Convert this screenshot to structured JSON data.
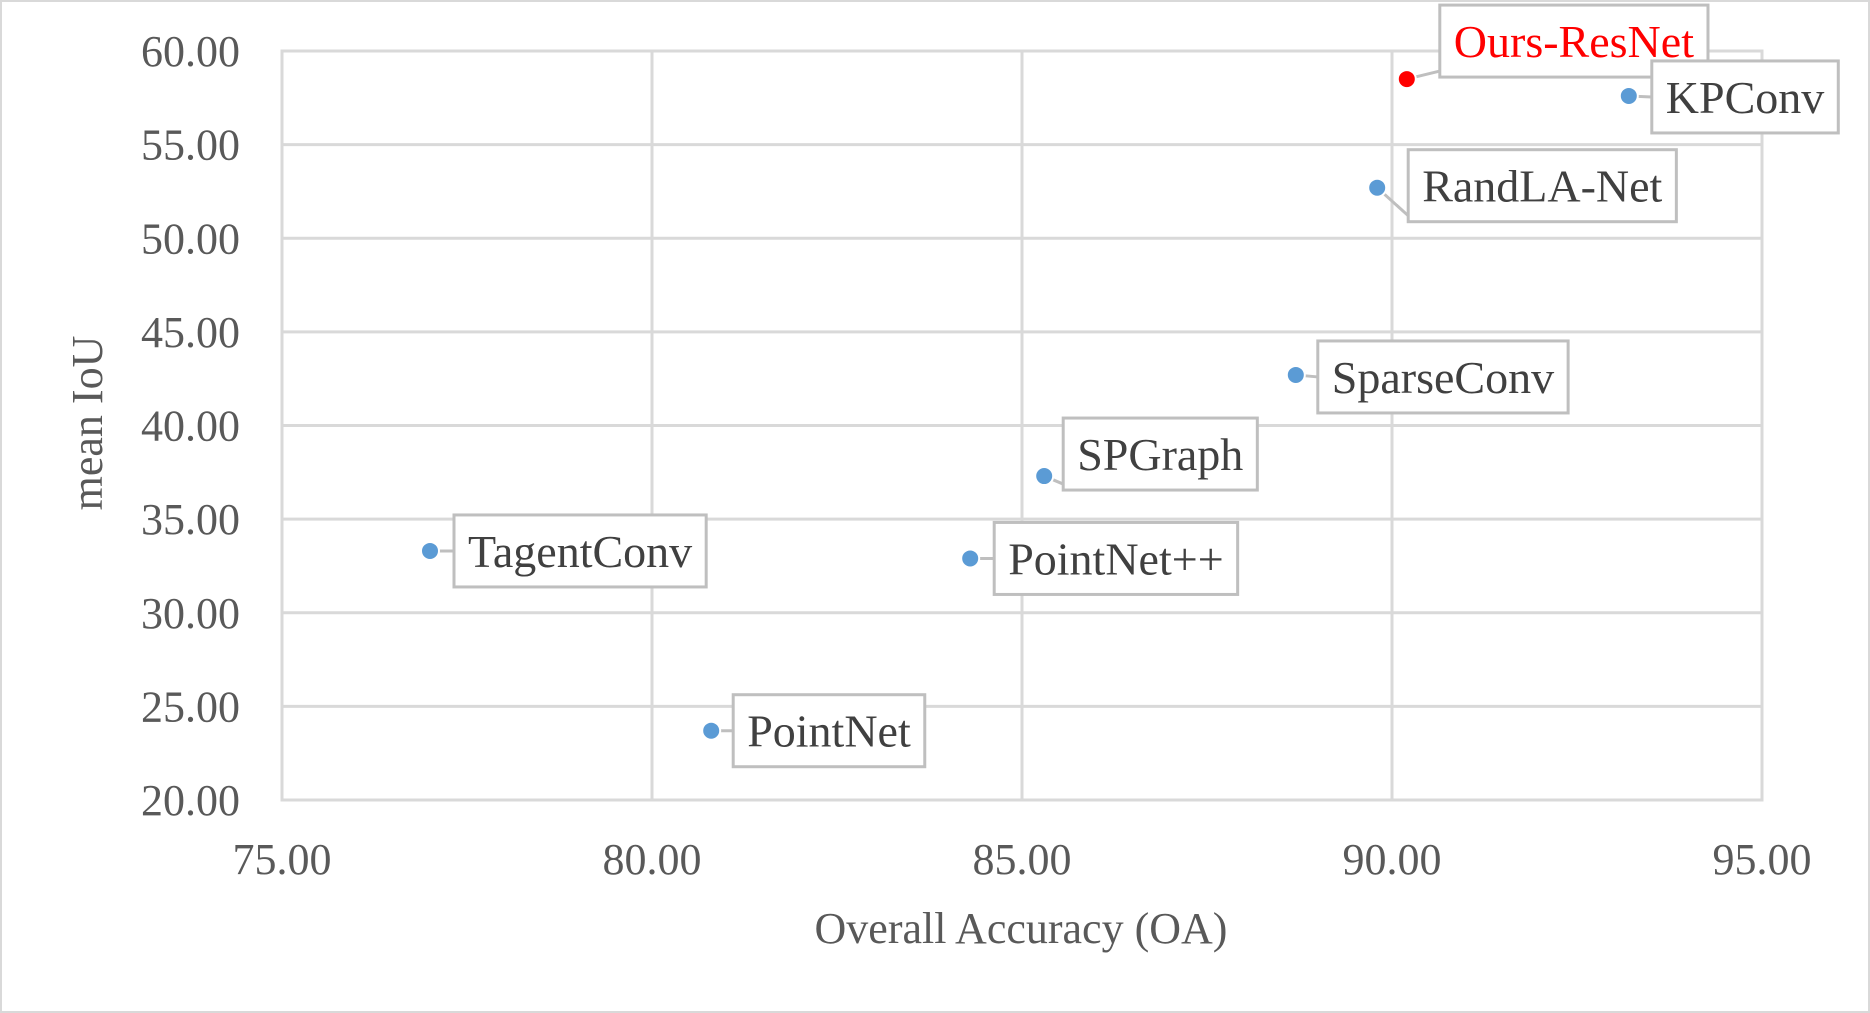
{
  "chart_data": {
    "type": "scatter",
    "xlabel": "Overall Accuracy (OA)",
    "ylabel": "mean IoU",
    "xlim": [
      75,
      95
    ],
    "ylim": [
      20,
      60
    ],
    "xticks": [
      "75.00",
      "80.00",
      "85.00",
      "90.00",
      "95.00"
    ],
    "yticks": [
      "20.00",
      "25.00",
      "30.00",
      "35.00",
      "40.00",
      "45.00",
      "50.00",
      "55.00",
      "60.00"
    ],
    "grid": true,
    "points": [
      {
        "label": "Ours-ResNet",
        "x": 90.2,
        "y": 58.5,
        "color": "#ff0000"
      },
      {
        "label": "KPConv",
        "x": 93.2,
        "y": 57.6,
        "color": "#5b9bd5"
      },
      {
        "label": "RandLA-Net",
        "x": 89.8,
        "y": 52.7,
        "color": "#5b9bd5"
      },
      {
        "label": "SparseConv",
        "x": 88.7,
        "y": 42.7,
        "color": "#5b9bd5"
      },
      {
        "label": "SPGraph",
        "x": 85.3,
        "y": 37.3,
        "color": "#5b9bd5"
      },
      {
        "label": "PointNet++",
        "x": 84.3,
        "y": 32.9,
        "color": "#5b9bd5"
      },
      {
        "label": "TagentConv",
        "x": 77.0,
        "y": 33.3,
        "color": "#5b9bd5"
      },
      {
        "label": "PointNet",
        "x": 80.8,
        "y": 23.7,
        "color": "#5b9bd5"
      }
    ]
  }
}
